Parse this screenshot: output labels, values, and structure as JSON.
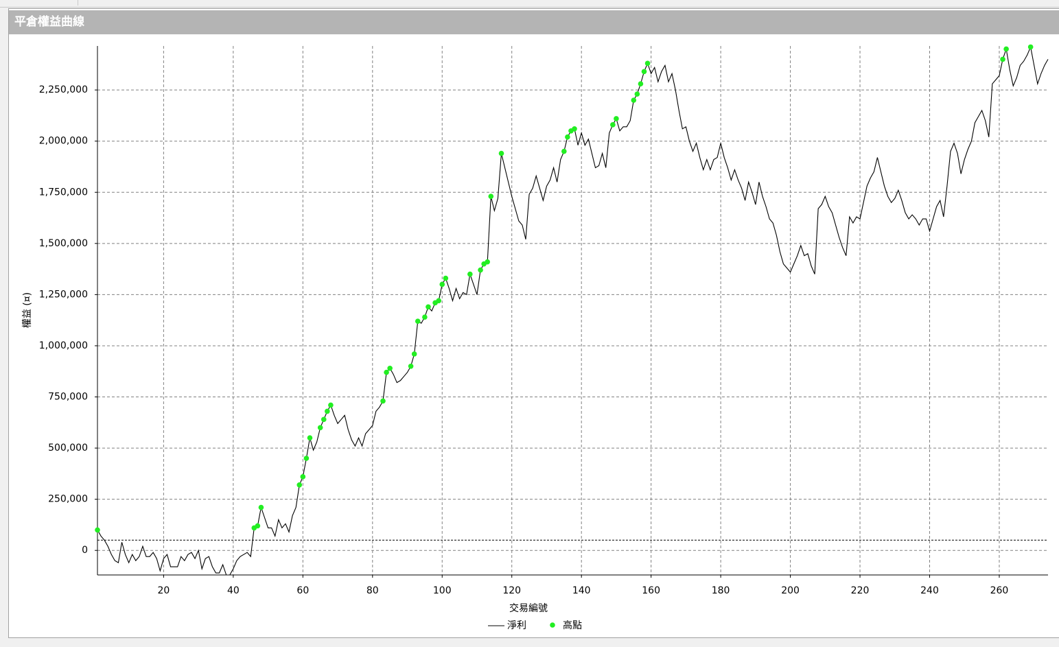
{
  "panel_title": "平倉權益曲線",
  "chart_data": {
    "type": "line",
    "xlabel": "交易編號",
    "ylabel": "權益 (¤)",
    "x": [
      1,
      2,
      3,
      4,
      5,
      6,
      7,
      8,
      9,
      10,
      11,
      12,
      13,
      14,
      15,
      16,
      17,
      18,
      19,
      20,
      21,
      22,
      23,
      24,
      25,
      26,
      27,
      28,
      29,
      30,
      31,
      32,
      33,
      34,
      35,
      36,
      37,
      38,
      39,
      40,
      41,
      42,
      43,
      44,
      45,
      46,
      47,
      48,
      49,
      50,
      51,
      52,
      53,
      54,
      55,
      56,
      57,
      58,
      59,
      60,
      61,
      62,
      63,
      64,
      65,
      66,
      67,
      68,
      69,
      70,
      71,
      72,
      73,
      74,
      75,
      76,
      77,
      78,
      79,
      80,
      81,
      82,
      83,
      84,
      85,
      86,
      87,
      88,
      89,
      90,
      91,
      92,
      93,
      94,
      95,
      96,
      97,
      98,
      99,
      100,
      101,
      102,
      103,
      104,
      105,
      106,
      107,
      108,
      109,
      110,
      111,
      112,
      113,
      114,
      115,
      116,
      117,
      118,
      119,
      120,
      121,
      122,
      123,
      124,
      125,
      126,
      127,
      128,
      129,
      130,
      131,
      132,
      133,
      134,
      135,
      136,
      137,
      138,
      139,
      140,
      141,
      142,
      143,
      144,
      145,
      146,
      147,
      148,
      149,
      150,
      151,
      152,
      153,
      154,
      155,
      156,
      157,
      158,
      159,
      160,
      161,
      162,
      163,
      164,
      165,
      166,
      167,
      168,
      169,
      170,
      171,
      172,
      173,
      174,
      175,
      176,
      177,
      178,
      179,
      180,
      181,
      182,
      183,
      184,
      185,
      186,
      187,
      188,
      189,
      190,
      191,
      192,
      193,
      194,
      195,
      196,
      197,
      198,
      199,
      200,
      201,
      202,
      203,
      204,
      205,
      206,
      207,
      208,
      209,
      210,
      211,
      212,
      213,
      214,
      215,
      216,
      217,
      218,
      219,
      220,
      221,
      222,
      223,
      224,
      225,
      226,
      227,
      228,
      229,
      230,
      231,
      232,
      233,
      234,
      235,
      236,
      237,
      238,
      239,
      240,
      241,
      242,
      243,
      244,
      245,
      246,
      247,
      248,
      249,
      250,
      251,
      252,
      253,
      254,
      255,
      256,
      257,
      258,
      259,
      260,
      261,
      262,
      263,
      264,
      265,
      266,
      267,
      268,
      269,
      270,
      271,
      272,
      273,
      274
    ],
    "series": [
      {
        "name": "淨利",
        "color": "#000000",
        "values": [
          100000,
          70000,
          50000,
          20000,
          -20000,
          -50000,
          -60000,
          40000,
          -20000,
          -60000,
          -20000,
          -50000,
          -30000,
          20000,
          -30000,
          -30000,
          -10000,
          -40000,
          -100000,
          -40000,
          -20000,
          -80000,
          -80000,
          -80000,
          -30000,
          -50000,
          -20000,
          -10000,
          -40000,
          0,
          -90000,
          -40000,
          -30000,
          -80000,
          -110000,
          -110000,
          -70000,
          -120000,
          -120000,
          -90000,
          -50000,
          -30000,
          -20000,
          -10000,
          -30000,
          110000,
          120000,
          210000,
          160000,
          110000,
          110000,
          70000,
          150000,
          110000,
          130000,
          90000,
          170000,
          210000,
          320000,
          360000,
          450000,
          550000,
          490000,
          530000,
          600000,
          640000,
          680000,
          710000,
          660000,
          620000,
          640000,
          660000,
          590000,
          540000,
          510000,
          550000,
          510000,
          570000,
          590000,
          610000,
          680000,
          700000,
          730000,
          870000,
          890000,
          860000,
          820000,
          830000,
          850000,
          870000,
          900000,
          960000,
          1120000,
          1110000,
          1140000,
          1190000,
          1170000,
          1210000,
          1220000,
          1300000,
          1330000,
          1280000,
          1220000,
          1280000,
          1230000,
          1260000,
          1250000,
          1350000,
          1300000,
          1250000,
          1370000,
          1400000,
          1410000,
          1730000,
          1660000,
          1720000,
          1940000,
          1870000,
          1800000,
          1730000,
          1670000,
          1610000,
          1590000,
          1520000,
          1740000,
          1770000,
          1830000,
          1770000,
          1710000,
          1780000,
          1810000,
          1870000,
          1800000,
          1910000,
          1950000,
          2020000,
          2050000,
          2060000,
          1980000,
          2040000,
          1980000,
          2010000,
          1940000,
          1870000,
          1880000,
          1940000,
          1870000,
          2040000,
          2080000,
          2110000,
          2050000,
          2070000,
          2070000,
          2100000,
          2200000,
          2230000,
          2280000,
          2340000,
          2380000,
          2330000,
          2360000,
          2290000,
          2340000,
          2370000,
          2290000,
          2330000,
          2250000,
          2150000,
          2060000,
          2070000,
          2000000,
          1950000,
          1990000,
          1920000,
          1860000,
          1910000,
          1860000,
          1910000,
          1920000,
          1990000,
          1920000,
          1870000,
          1810000,
          1860000,
          1810000,
          1770000,
          1710000,
          1800000,
          1750000,
          1690000,
          1800000,
          1730000,
          1680000,
          1620000,
          1600000,
          1540000,
          1460000,
          1400000,
          1380000,
          1360000,
          1400000,
          1440000,
          1490000,
          1440000,
          1450000,
          1390000,
          1350000,
          1670000,
          1690000,
          1730000,
          1680000,
          1650000,
          1590000,
          1530000,
          1480000,
          1440000,
          1630000,
          1600000,
          1630000,
          1620000,
          1700000,
          1780000,
          1820000,
          1850000,
          1920000,
          1850000,
          1780000,
          1730000,
          1700000,
          1720000,
          1760000,
          1710000,
          1650000,
          1620000,
          1640000,
          1620000,
          1590000,
          1620000,
          1620000,
          1560000,
          1620000,
          1680000,
          1710000,
          1630000,
          1780000,
          1950000,
          1990000,
          1940000,
          1840000,
          1910000,
          1960000,
          2000000,
          2090000,
          2120000,
          2150000,
          2100000,
          2020000,
          2280000,
          2300000,
          2320000,
          2400000,
          2450000,
          2350000,
          2270000,
          2310000,
          2370000,
          2390000,
          2420000,
          2460000,
          2370000,
          2280000,
          2330000,
          2370000,
          2400000
        ]
      },
      {
        "name": "高點",
        "color": "#22ee22",
        "x": [
          1,
          46,
          47,
          48,
          59,
          60,
          61,
          62,
          65,
          66,
          67,
          68,
          83,
          84,
          85,
          91,
          92,
          93,
          95,
          96,
          98,
          99,
          100,
          101,
          108,
          111,
          112,
          113,
          114,
          117,
          135,
          136,
          137,
          138,
          149,
          150,
          155,
          156,
          157,
          158,
          159,
          261,
          262,
          269
        ],
        "values": [
          100000,
          110000,
          120000,
          210000,
          320000,
          360000,
          450000,
          550000,
          600000,
          640000,
          680000,
          710000,
          730000,
          870000,
          890000,
          900000,
          960000,
          1120000,
          1140000,
          1190000,
          1210000,
          1220000,
          1300000,
          1330000,
          1350000,
          1370000,
          1400000,
          1410000,
          1730000,
          1940000,
          1950000,
          2020000,
          2050000,
          2060000,
          2080000,
          2110000,
          2200000,
          2230000,
          2280000,
          2340000,
          2380000,
          2400000,
          2450000,
          2460000
        ]
      }
    ],
    "reference_line": 50000,
    "xlim": [
      1,
      274
    ],
    "ylim": [
      -120000,
      2465000
    ],
    "xticks": [
      20,
      40,
      60,
      80,
      100,
      120,
      140,
      160,
      180,
      200,
      220,
      240,
      260
    ],
    "yticks": [
      0,
      {
        "value": 250000,
        "label": "250,000"
      },
      {
        "value": 500000,
        "label": "500,000"
      },
      {
        "value": 750000,
        "label": "750,000"
      },
      {
        "value": 1000000,
        "label": "1,000,000"
      },
      {
        "value": 1250000,
        "label": "1,250,000"
      },
      {
        "value": 1500000,
        "label": "1,500,000"
      },
      {
        "value": 1750000,
        "label": "1,750,000"
      },
      {
        "value": 2000000,
        "label": "2,000,000"
      },
      {
        "value": 2250000,
        "label": "2,250,000"
      }
    ],
    "grid": true
  }
}
